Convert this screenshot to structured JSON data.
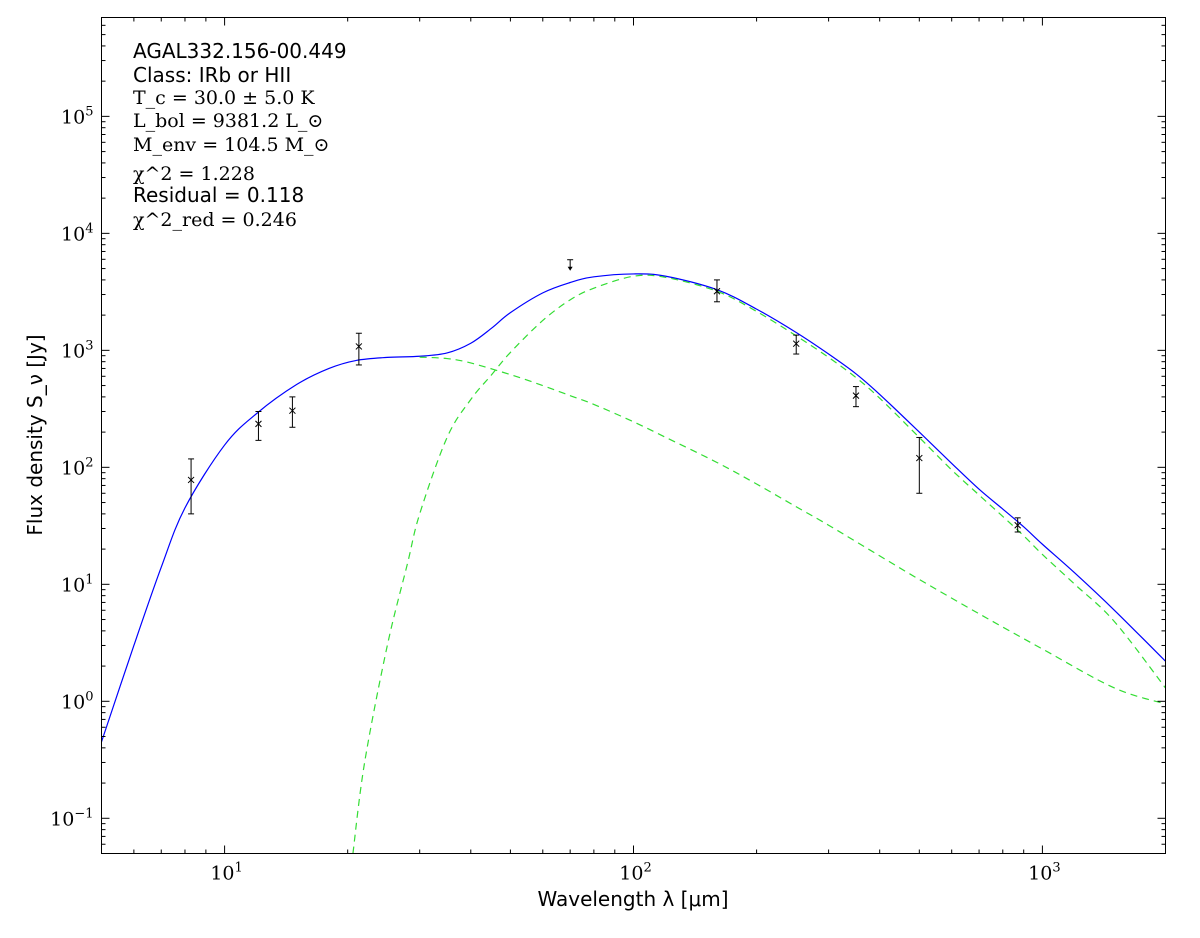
{
  "chart_data": {
    "type": "scatter",
    "xscale": "log",
    "yscale": "log",
    "xlim": [
      5,
      2000
    ],
    "ylim": [
      0.05,
      700000
    ],
    "grid": false,
    "xlabel": "Wavelength λ [μm]",
    "ylabel": "Flux density S_ν [Jy]",
    "xticks": [
      10,
      100,
      1000
    ],
    "xtick_labels": [
      {
        "base": "10",
        "exp": "1"
      },
      {
        "base": "10",
        "exp": "2"
      },
      {
        "base": "10",
        "exp": "3"
      }
    ],
    "yticks": [
      0.1,
      1,
      10,
      100,
      1000,
      10000,
      100000
    ],
    "ytick_labels": [
      {
        "base": "10",
        "exp": "−1"
      },
      {
        "base": "10",
        "exp": "0"
      },
      {
        "base": "10",
        "exp": "1"
      },
      {
        "base": "10",
        "exp": "2"
      },
      {
        "base": "10",
        "exp": "3"
      },
      {
        "base": "10",
        "exp": "4"
      },
      {
        "base": "10",
        "exp": "5"
      }
    ],
    "annotations": {
      "source": "AGAL332.156-00.449",
      "class": "Class: IRb or HII",
      "tc": "T_c = 30.0 ± 5.0 K",
      "lbol": "L_bol = 9381.2 L_⊙",
      "menv": "M_env = 104.5 M_⊙",
      "chi2": "χ^2 = 1.228",
      "residual": "Residual = 0.118",
      "chi2red": "χ^2_red = 0.246"
    },
    "measurements": [
      {
        "x": 8.28,
        "y": 78,
        "yerr_low": 40,
        "yerr_high": 118
      },
      {
        "x": 12.1,
        "y": 235,
        "yerr_low": 170,
        "yerr_high": 300
      },
      {
        "x": 14.65,
        "y": 305,
        "yerr_low": 220,
        "yerr_high": 400
      },
      {
        "x": 21.3,
        "y": 1080,
        "yerr_low": 750,
        "yerr_high": 1400
      },
      {
        "x": 160,
        "y": 3200,
        "yerr_low": 2600,
        "yerr_high": 4000
      },
      {
        "x": 250,
        "y": 1140,
        "yerr_low": 930,
        "yerr_high": 1350
      },
      {
        "x": 350,
        "y": 410,
        "yerr_low": 330,
        "yerr_high": 490
      },
      {
        "x": 500,
        "y": 120,
        "yerr_low": 60,
        "yerr_high": 180
      },
      {
        "x": 870,
        "y": 32,
        "yerr_low": 28,
        "yerr_high": 37
      }
    ],
    "upper_limits": [
      {
        "x": 70,
        "y": 5500
      }
    ],
    "series": [
      {
        "color": "#0000ff",
        "style": "solid",
        "x": [
          5,
          6,
          7,
          8,
          10,
          12,
          15,
          18,
          21,
          25,
          30,
          35,
          40,
          45,
          50,
          60,
          70,
          80,
          100,
          120,
          160,
          200,
          250,
          300,
          350,
          400,
          500,
          600,
          700,
          800,
          900,
          1000,
          1200,
          1500,
          2000
        ],
        "y": [
          0.45,
          3,
          14,
          45,
          155,
          290,
          510,
          700,
          820,
          870,
          890,
          950,
          1150,
          1550,
          2100,
          3100,
          3800,
          4250,
          4500,
          4300,
          3300,
          2250,
          1420,
          930,
          630,
          420,
          200,
          108,
          65,
          44,
          31,
          22,
          12.5,
          6,
          2.2
        ]
      },
      {
        "color": "#33dd33",
        "style": "dashed",
        "x": [
          20.6,
          22,
          25,
          28,
          30,
          35,
          40,
          45,
          50,
          60,
          70,
          80,
          100,
          120,
          160,
          200,
          250,
          300,
          350,
          400,
          500,
          600,
          700,
          800,
          900,
          1000,
          1200,
          1500,
          2000
        ],
        "y": [
          0.05,
          0.3,
          3,
          15,
          40,
          180,
          380,
          620,
          960,
          1800,
          2700,
          3400,
          4300,
          4200,
          3200,
          2150,
          1330,
          870,
          585,
          390,
          180,
          95,
          58,
          38,
          26,
          18,
          10,
          4.8,
          1.3
        ]
      },
      {
        "color": "#33dd33",
        "style": "dashed",
        "x": [
          30,
          35,
          40,
          50,
          60,
          70,
          80,
          100,
          120,
          160,
          200,
          250,
          300,
          400,
          500,
          700,
          1000,
          1500,
          2000
        ],
        "y": [
          875,
          850,
          780,
          620,
          500,
          410,
          345,
          245,
          180,
          110,
          72,
          46,
          32,
          17.5,
          11,
          5.6,
          2.8,
          1.3,
          0.95
        ]
      }
    ]
  }
}
